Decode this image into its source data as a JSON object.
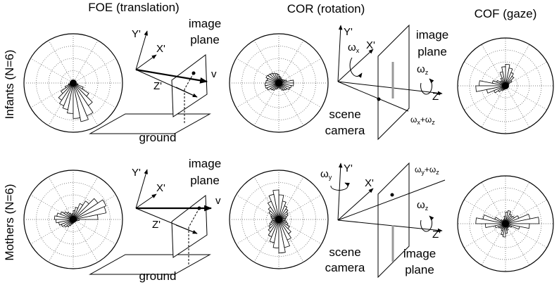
{
  "columns": {
    "foe": "FOE (translation)",
    "cor": "COR (rotation)",
    "cof": "COF (gaze)"
  },
  "rows": {
    "infants": "Infants (N=6)",
    "mothers": "Mothers (N=6)"
  },
  "labels": {
    "image": "image",
    "plane": "plane",
    "ground": "ground",
    "scene": "scene",
    "camera": "camera",
    "x_prime": "X'",
    "y_prime": "Y'",
    "z_prime": "Z'",
    "v_vec": "v",
    "omega": "ω",
    "sub_x": "x",
    "sub_y": "y",
    "sub_z": "z",
    "plus": "+"
  },
  "rose_data": {
    "infants_foe": [
      0.05,
      0.05,
      0.05,
      0.05,
      0.05,
      0.05,
      0.05,
      0.05,
      0.05,
      0.05,
      0.05,
      0.05,
      0.05,
      0.05,
      0.05,
      0.05,
      0.05,
      0.1,
      0.18,
      0.3,
      0.42,
      0.5,
      0.55,
      0.62,
      0.72,
      0.8,
      0.72,
      0.55,
      0.38,
      0.22,
      0.1,
      0.05
    ],
    "infants_cor": [
      0.3,
      0.16,
      0.12,
      0.1,
      0.1,
      0.1,
      0.12,
      0.14,
      0.18,
      0.2,
      0.22,
      0.24,
      0.26,
      0.28,
      0.24,
      0.26,
      0.28,
      0.28,
      0.26,
      0.2,
      0.18,
      0.14,
      0.12,
      0.1,
      0.1,
      0.12,
      0.16,
      0.18,
      0.2,
      0.24,
      0.26,
      0.3
    ],
    "infants_cof": [
      0.05,
      0.05,
      0.08,
      0.16,
      0.24,
      0.3,
      0.38,
      0.45,
      0.4,
      0.3,
      0.18,
      0.12,
      0.14,
      0.2,
      0.28,
      0.55,
      0.62,
      0.4,
      0.26,
      0.18,
      0.12,
      0.1,
      0.08,
      0.06,
      0.05,
      0.05,
      0.05,
      0.05,
      0.05,
      0.05,
      0.05,
      0.05
    ],
    "mothers_foe": [
      0.5,
      0.68,
      0.72,
      0.6,
      0.45,
      0.35,
      0.25,
      0.18,
      0.12,
      0.1,
      0.14,
      0.18,
      0.22,
      0.28,
      0.34,
      0.38,
      0.35,
      0.3,
      0.26,
      0.22,
      0.18,
      0.14,
      0.1,
      0.08,
      0.06,
      0.06,
      0.05,
      0.05,
      0.05,
      0.06,
      0.08,
      0.12
    ],
    "mothers_cor": [
      0.14,
      0.16,
      0.2,
      0.22,
      0.26,
      0.3,
      0.38,
      0.5,
      0.6,
      0.52,
      0.4,
      0.3,
      0.24,
      0.18,
      0.16,
      0.14,
      0.12,
      0.16,
      0.2,
      0.24,
      0.3,
      0.38,
      0.48,
      0.58,
      0.68,
      0.58,
      0.45,
      0.35,
      0.26,
      0.2,
      0.16,
      0.12
    ],
    "mothers_cof": [
      0.7,
      0.52,
      0.3,
      0.22,
      0.2,
      0.22,
      0.28,
      0.24,
      0.16,
      0.1,
      0.08,
      0.08,
      0.12,
      0.24,
      0.48,
      0.62,
      0.42,
      0.22,
      0.16,
      0.14,
      0.12,
      0.16,
      0.24,
      0.28,
      0.2,
      0.14,
      0.1,
      0.08,
      0.1,
      0.14,
      0.3,
      0.5
    ]
  }
}
